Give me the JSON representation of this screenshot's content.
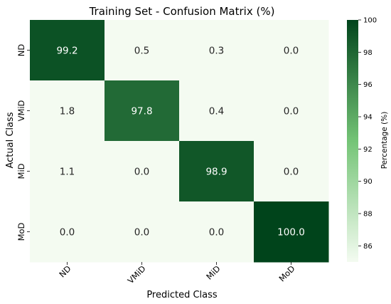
{
  "chart_data": {
    "type": "heatmap",
    "title": "Training Set - Confusion Matrix (%)",
    "xlabel": "Predicted Class",
    "ylabel": "Actual Class",
    "x_categories": [
      "ND",
      "VMiD",
      "MiD",
      "MoD"
    ],
    "y_categories": [
      "ND",
      "VMiD",
      "MiD",
      "MoD"
    ],
    "values": [
      [
        99.2,
        0.5,
        0.3,
        0.0
      ],
      [
        1.8,
        97.8,
        0.4,
        0.0
      ],
      [
        1.1,
        0.0,
        98.9,
        0.0
      ],
      [
        0.0,
        0.0,
        0.0,
        100.0
      ]
    ],
    "value_labels": [
      [
        "99.2",
        "0.5",
        "0.3",
        "0.0"
      ],
      [
        "1.8",
        "97.8",
        "0.4",
        "0.0"
      ],
      [
        "1.1",
        "0.0",
        "98.9",
        "0.0"
      ],
      [
        "0.0",
        "0.0",
        "0.0",
        "100.0"
      ]
    ],
    "colormap": "Greens",
    "color_range": [
      85,
      100
    ],
    "colorbar": {
      "label": "Percentage (%)",
      "ticks": [
        86,
        88,
        90,
        92,
        94,
        96,
        98,
        100
      ],
      "tick_labels": [
        "86",
        "88",
        "90",
        "92",
        "94",
        "96",
        "98",
        "100"
      ]
    },
    "colors": {
      "low": "#f4fbf1",
      "mid": "#74c476",
      "high": "#00441b"
    }
  }
}
